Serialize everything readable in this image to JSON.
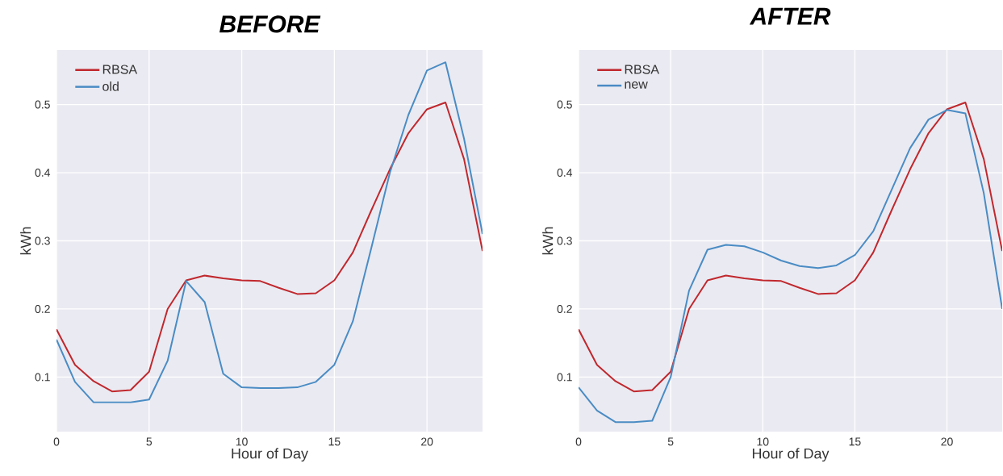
{
  "chart_data": [
    {
      "type": "line",
      "title": "BEFORE",
      "xlabel": "Hour of Day",
      "ylabel": "kWh",
      "x": [
        0,
        1,
        2,
        3,
        4,
        5,
        6,
        7,
        8,
        9,
        10,
        11,
        12,
        13,
        14,
        15,
        16,
        17,
        18,
        19,
        20,
        21,
        22,
        23
      ],
      "xlim": [
        0,
        23
      ],
      "ylim": [
        0.02,
        0.58
      ],
      "xticks": [
        0,
        5,
        10,
        15,
        20
      ],
      "yticks": [
        0.1,
        0.2,
        0.3,
        0.4,
        0.5
      ],
      "grid": true,
      "legend": "top left",
      "series": [
        {
          "name": "RBSA",
          "color": "#c0282d",
          "values": [
            0.17,
            0.118,
            0.094,
            0.079,
            0.081,
            0.108,
            0.2,
            0.242,
            0.249,
            0.245,
            0.242,
            0.241,
            0.231,
            0.222,
            0.223,
            0.242,
            0.283,
            0.345,
            0.405,
            0.458,
            0.493,
            0.503,
            0.42,
            0.285
          ]
        },
        {
          "name": "old",
          "color": "#4a8cc4",
          "values": [
            0.155,
            0.093,
            0.063,
            0.063,
            0.063,
            0.067,
            0.124,
            0.241,
            0.21,
            0.105,
            0.085,
            0.084,
            0.084,
            0.085,
            0.093,
            0.118,
            0.182,
            0.29,
            0.4,
            0.485,
            0.55,
            0.562,
            0.45,
            0.31
          ]
        }
      ]
    },
    {
      "type": "line",
      "title": "AFTER",
      "xlabel": "Hour of Day",
      "ylabel": "kWh",
      "x": [
        0,
        1,
        2,
        3,
        4,
        5,
        6,
        7,
        8,
        9,
        10,
        11,
        12,
        13,
        14,
        15,
        16,
        17,
        18,
        19,
        20,
        21,
        22,
        23
      ],
      "xlim": [
        0,
        23
      ],
      "ylim": [
        0.02,
        0.58
      ],
      "xticks": [
        0,
        5,
        10,
        15,
        20
      ],
      "yticks": [
        0.1,
        0.2,
        0.3,
        0.4,
        0.5
      ],
      "grid": true,
      "legend": "top left",
      "series": [
        {
          "name": "RBSA",
          "color": "#c0282d",
          "values": [
            0.17,
            0.118,
            0.094,
            0.079,
            0.081,
            0.108,
            0.2,
            0.242,
            0.249,
            0.245,
            0.242,
            0.241,
            0.231,
            0.222,
            0.223,
            0.242,
            0.283,
            0.345,
            0.405,
            0.458,
            0.493,
            0.503,
            0.42,
            0.285
          ]
        },
        {
          "name": "new",
          "color": "#4a8cc4",
          "values": [
            0.085,
            0.051,
            0.034,
            0.034,
            0.036,
            0.1,
            0.227,
            0.287,
            0.294,
            0.292,
            0.283,
            0.271,
            0.263,
            0.26,
            0.264,
            0.279,
            0.314,
            0.375,
            0.436,
            0.478,
            0.492,
            0.487,
            0.37,
            0.2
          ]
        }
      ]
    }
  ]
}
